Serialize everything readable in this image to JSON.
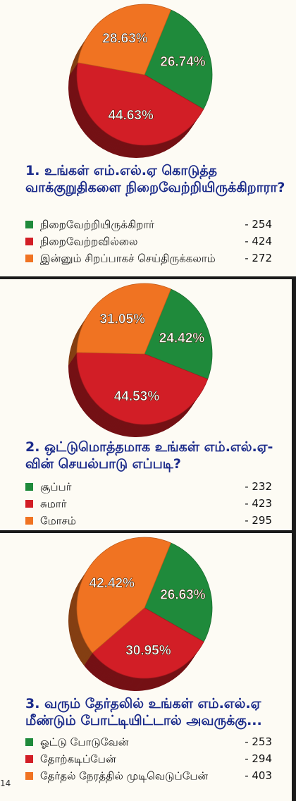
{
  "colors": {
    "green": "#1f8a3b",
    "red": "#d21e26",
    "orange": "#f07322"
  },
  "page_number": "14",
  "chart_data": [
    {
      "type": "pie",
      "title": "1. உங்கள் எம்.எல்.ஏ கொடுத்த வாக்குறுதிகளை நிறைவேற்றியிருக்கிறாரா?",
      "categories": [
        "நிறைவேற்றியிருக்கிறார்",
        "நிறைவேற்றவில்லை",
        "இன்னும் சிறப்பாகச் செய்திருக்கலாம்"
      ],
      "values": [
        254,
        424,
        272
      ],
      "value_labels": [
        "- 254",
        "- 424",
        "- 272"
      ],
      "percent_labels": [
        "26.74%",
        "44.63%",
        "28.63%"
      ],
      "percents": [
        26.74,
        44.63,
        28.63
      ],
      "colors": [
        "#1f8a3b",
        "#d21e26",
        "#f07322"
      ]
    },
    {
      "type": "pie",
      "title": "2. ஒட்டுமொத்தமாக உங்கள் எம்.எல்.ஏ-வின் செயல்பாடு எப்படி?",
      "categories": [
        "சூப்பர்",
        "சுமார்",
        "மோசம்"
      ],
      "values": [
        232,
        423,
        295
      ],
      "value_labels": [
        "- 232",
        "- 423",
        "- 295"
      ],
      "percent_labels": [
        "24.42%",
        "44.53%",
        "31.05%"
      ],
      "percents": [
        24.42,
        44.53,
        31.05
      ],
      "colors": [
        "#1f8a3b",
        "#d21e26",
        "#f07322"
      ]
    },
    {
      "type": "pie",
      "title": "3. வரும் தேர்தலில் உங்கள் எம்.எல்.ஏ மீண்டும் போட்டியிட்டால் அவருக்கு...",
      "categories": [
        "ஓட்டு போடுவேன்",
        "தோற்கடிப்பேன்",
        "தேர்தல் நேரத்தில் முடிவெடுப்பேன்"
      ],
      "values": [
        253,
        294,
        403
      ],
      "value_labels": [
        "- 253",
        "- 294",
        "- 403"
      ],
      "percent_labels": [
        "26.63%",
        "30.95%",
        "42.42%"
      ],
      "percents": [
        26.63,
        30.95,
        42.42
      ],
      "colors": [
        "#1f8a3b",
        "#d21e26",
        "#f07322"
      ]
    }
  ]
}
